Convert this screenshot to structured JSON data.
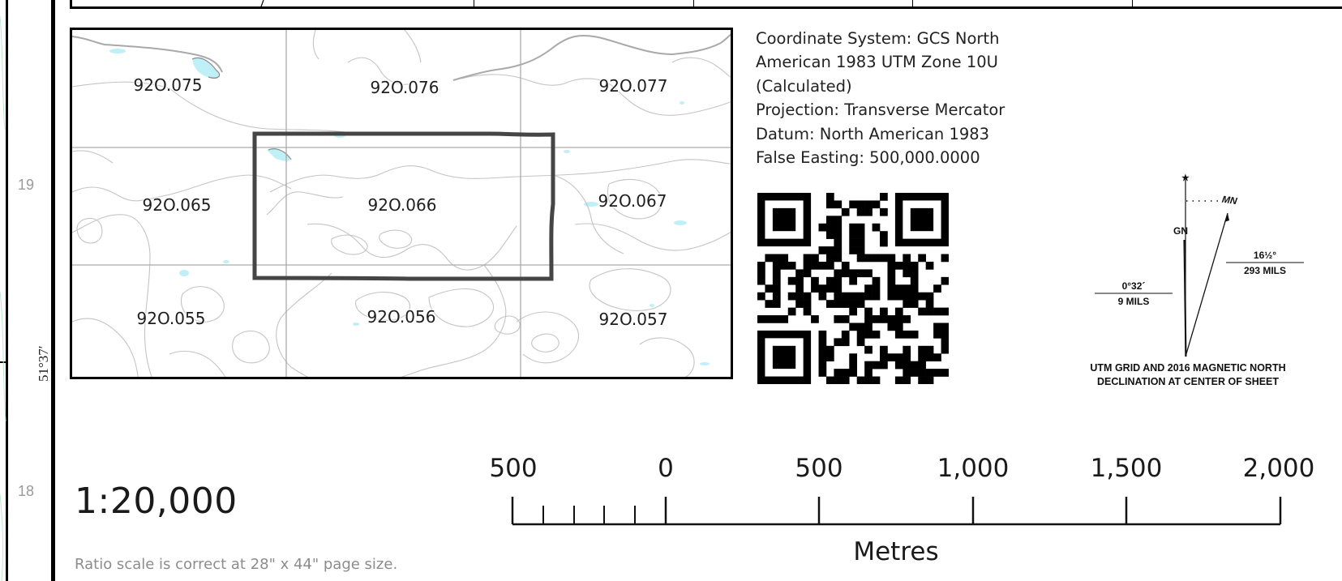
{
  "left_frame": {
    "grid_numbers": [
      "19",
      "18"
    ],
    "latitude_label": "51°37′"
  },
  "index_map": {
    "tiles": [
      {
        "label": "92O.075"
      },
      {
        "label": "92O.076"
      },
      {
        "label": "92O.077"
      },
      {
        "label": "92O.065"
      },
      {
        "label": "92O.066"
      },
      {
        "label": "92O.067"
      },
      {
        "label": "92O.055"
      },
      {
        "label": "92O.056"
      },
      {
        "label": "92O.057"
      }
    ],
    "current_sheet": "92O.066",
    "colors": {
      "contour": "#c4c4c4",
      "grid": "#aaaaaa",
      "water": "#bfeff7",
      "outline": "#454545"
    }
  },
  "coordinate_info": {
    "lines": [
      "Coordinate System: GCS North",
      "American 1983 UTM Zone 10U",
      "(Calculated)",
      "Projection: Transverse Mercator",
      "Datum: North American 1983",
      "False Easting: 500,000.0000"
    ]
  },
  "qr_code": {
    "icon": "qr-code-icon"
  },
  "declination": {
    "star": "★",
    "mn_label": "MN",
    "gn_label": "GN",
    "magnetic_top": "16½°",
    "magnetic_bottom": "293 MILS",
    "grid_top": "0°32´",
    "grid_bottom": "9 MILS",
    "caption_line1": "UTM GRID AND 2016 MAGNETIC NORTH",
    "caption_line2": "DECLINATION AT CENTER OF SHEET"
  },
  "scale": {
    "ratio": "1:20,000",
    "note": "Ratio scale is correct at 28\" x 44\" page size.",
    "labels": [
      "500",
      "0",
      "500",
      "1,000",
      "1,500",
      "2,000"
    ],
    "unit": "Metres"
  }
}
